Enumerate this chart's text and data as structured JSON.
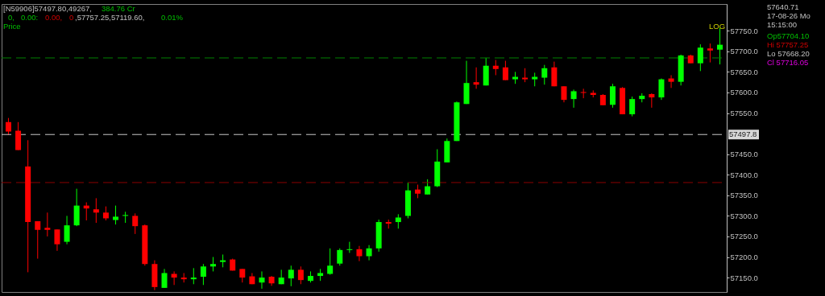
{
  "chart_data": {
    "type": "candlestick",
    "categories": [
      null,
      null,
      null,
      null,
      null,
      null,
      null,
      null,
      null,
      null,
      null,
      null,
      null,
      null,
      null,
      null,
      null,
      null,
      null,
      null,
      null,
      null,
      null,
      null,
      null,
      null,
      null,
      null,
      null,
      null,
      null,
      null,
      null,
      null,
      null,
      null,
      null,
      null,
      null,
      null,
      null,
      null,
      null,
      null,
      null,
      null,
      null,
      null,
      null,
      null,
      null,
      null,
      null,
      null,
      null,
      null,
      null,
      null,
      null,
      null,
      null,
      null,
      null,
      null,
      null,
      null,
      null,
      null,
      null,
      null,
      null,
      null,
      null,
      null
    ],
    "ohlc": [
      [
        57528,
        57538,
        57497,
        57505
      ],
      [
        57507,
        57528,
        57460,
        57460
      ],
      [
        57420,
        57484,
        57163,
        57285
      ],
      [
        57287,
        57287,
        57196,
        57266
      ],
      [
        57271,
        57308,
        57250,
        57266
      ],
      [
        57267,
        57267,
        57215,
        57231
      ],
      [
        57237,
        57300,
        57231,
        57277
      ],
      [
        57277,
        57366,
        57275,
        57325
      ],
      [
        57325,
        57333,
        57289,
        57318
      ],
      [
        57316,
        57343,
        57283,
        57308
      ],
      [
        57308,
        57323,
        57289,
        57294
      ],
      [
        57290,
        57325,
        57279,
        57298
      ],
      [
        57300,
        57310,
        57283,
        57302
      ],
      [
        57300,
        57306,
        57256,
        57275
      ],
      [
        57277,
        57279,
        57179,
        57183
      ],
      [
        57183,
        57192,
        57119.6,
        57127
      ],
      [
        57125,
        57171,
        57125,
        57161
      ],
      [
        57159,
        57165,
        57132,
        57150
      ],
      [
        57150,
        57161,
        57138,
        57146
      ],
      [
        57146,
        57173,
        57134,
        57150
      ],
      [
        57152,
        57183,
        57132,
        57177
      ],
      [
        57177,
        57200,
        57165,
        57183
      ],
      [
        57188,
        57206,
        57175,
        57192
      ],
      [
        57194,
        57196,
        57167,
        57167
      ],
      [
        57171,
        57171,
        57138,
        57150
      ],
      [
        57153,
        57161,
        57134,
        57134
      ],
      [
        57138,
        57165,
        57123,
        57150
      ],
      [
        57152,
        57154,
        57130,
        57136
      ],
      [
        57134,
        57169,
        57134,
        57150
      ],
      [
        57148,
        57179,
        57129,
        57169
      ],
      [
        57169,
        57177,
        57134,
        57144
      ],
      [
        57142,
        57165,
        57138,
        57154
      ],
      [
        57154,
        57171,
        57142,
        57161
      ],
      [
        57159,
        57221,
        57157,
        57179
      ],
      [
        57184,
        57221,
        57179,
        57217
      ],
      [
        57217,
        57237,
        57210,
        57219
      ],
      [
        57219,
        57227,
        57190,
        57202
      ],
      [
        57202,
        57229,
        57192,
        57221
      ],
      [
        57221,
        57291,
        57213,
        57285
      ],
      [
        57285,
        57291,
        57269,
        57281
      ],
      [
        57285,
        57304,
        57269,
        57296
      ],
      [
        57300,
        57381,
        57294,
        57362
      ],
      [
        57364,
        57376,
        57343,
        57354
      ],
      [
        57352,
        57389,
        57352,
        57372
      ],
      [
        57372,
        57462,
        57370,
        57432
      ],
      [
        57430,
        57488,
        57430,
        57482
      ],
      [
        57482,
        57578,
        57482,
        57576
      ],
      [
        57572,
        57677,
        57572,
        57623
      ],
      [
        57625,
        57661,
        57609,
        57619
      ],
      [
        57617,
        57684,
        57617,
        57665
      ],
      [
        57665,
        57679,
        57642,
        57657
      ],
      [
        57661,
        57677,
        57630,
        57630
      ],
      [
        57632,
        57650,
        57621,
        57638
      ],
      [
        57636,
        57659,
        57625,
        57632
      ],
      [
        57632,
        57648,
        57615,
        57638
      ],
      [
        57636,
        57667,
        57619,
        57659
      ],
      [
        57661,
        57675,
        57615,
        57615
      ],
      [
        57615,
        57615,
        57576,
        57582
      ],
      [
        57584,
        57607,
        57563,
        57603
      ],
      [
        57601,
        57609,
        57586,
        57599
      ],
      [
        57599,
        57605,
        57588,
        57594
      ],
      [
        57594,
        57596,
        57569,
        57569
      ],
      [
        57570,
        57621,
        57563,
        57615
      ],
      [
        57611,
        57613,
        57547,
        57547
      ],
      [
        57547,
        57590,
        57542,
        57584
      ],
      [
        57584,
        57598,
        57576,
        57592
      ],
      [
        57596,
        57598,
        57563,
        57588
      ],
      [
        57588,
        57634,
        57582,
        57632
      ],
      [
        57634,
        57642,
        57611,
        57626
      ],
      [
        57626,
        57692,
        57617,
        57690
      ],
      [
        57690,
        57692,
        57671,
        57671
      ],
      [
        57671,
        57717,
        57652,
        57709
      ],
      [
        57707,
        57719,
        57673,
        57702
      ],
      [
        57704.1,
        57757.25,
        57668.2,
        57716.05
      ]
    ],
    "colors": [
      "#ff0000",
      "#ff0000",
      "#ff0000",
      "#ff0000",
      "#ff0000",
      "#ff0000",
      "#00ff00",
      "#00ff00",
      "#ff0000",
      "#ff0000",
      "#ff0000",
      "#00ff00",
      "#00ff00",
      "#ff0000",
      "#ff0000",
      "#ff0000",
      "#00ff00",
      "#ff0000",
      "#ff0000",
      "#00ff00",
      "#00ff00",
      "#00ff00",
      "#00ff00",
      "#ff0000",
      "#ff0000",
      "#ff0000",
      "#00ff00",
      "#ff0000",
      "#00ff00",
      "#00ff00",
      "#ff0000",
      "#00ff00",
      "#00ff00",
      "#00ff00",
      "#00ff00",
      "#00ff00",
      "#ff0000",
      "#00ff00",
      "#00ff00",
      "#ff0000",
      "#00ff00",
      "#00ff00",
      "#ff0000",
      "#00ff00",
      "#00ff00",
      "#00ff00",
      "#00ff00",
      "#00ff00",
      "#ff0000",
      "#00ff00",
      "#ff0000",
      "#ff0000",
      "#00ff00",
      "#ff0000",
      "#00ff00",
      "#00ff00",
      "#ff0000",
      "#ff0000",
      "#00ff00",
      "#ff0000",
      "#ff0000",
      "#ff0000",
      "#00ff00",
      "#ff0000",
      "#00ff00",
      "#00ff00",
      "#ff0000",
      "#00ff00",
      "#ff0000",
      "#00ff00",
      "#ff0000",
      "#00ff00",
      "#ff0000",
      "#00ff00"
    ],
    "ylim": [
      57115,
      57815
    ],
    "yticks": [
      {
        "value": 57150,
        "label": "57150.0"
      },
      {
        "value": 57200,
        "label": "57200.0"
      },
      {
        "value": 57250,
        "label": "57250.0"
      },
      {
        "value": 57300,
        "label": "57300.0"
      },
      {
        "value": 57350,
        "label": "57350.0"
      },
      {
        "value": 57400,
        "label": "57400.0"
      },
      {
        "value": 57450,
        "label": "57450.0"
      },
      {
        "value": 57550,
        "label": "57550.0"
      },
      {
        "value": 57600,
        "label": "57600.0"
      },
      {
        "value": 57650,
        "label": "57650.0"
      },
      {
        "value": 57700,
        "label": "57700.0"
      },
      {
        "value": 57750,
        "label": "57750.0"
      }
    ],
    "ref_lines": [
      {
        "axis": "y",
        "value": 57684,
        "color": "#008000",
        "line_style": "dashed"
      },
      {
        "axis": "y",
        "value": 57497.8,
        "label": "57497.8",
        "color": "#c8c8c8",
        "line_style": "dashed"
      },
      {
        "axis": "y",
        "value": 57381,
        "color": "#8b0000",
        "line_style": "dashed"
      }
    ],
    "annotations": [
      "[N59906]57497.80,49267,",
      "384.76  Cr",
      "0,",
      "0.00:",
      "0.00,",
      "0",
      ",57757.25,57119.60,",
      "0.01%",
      "Price",
      "LOG",
      "57640.71",
      "17-08-26 Mo",
      "15:15:00",
      "Op57704.10",
      "Hi  57757.25",
      "Lo 57668.20",
      "Cl  57716.05"
    ],
    "grid": false,
    "tick_labels": "y"
  }
}
